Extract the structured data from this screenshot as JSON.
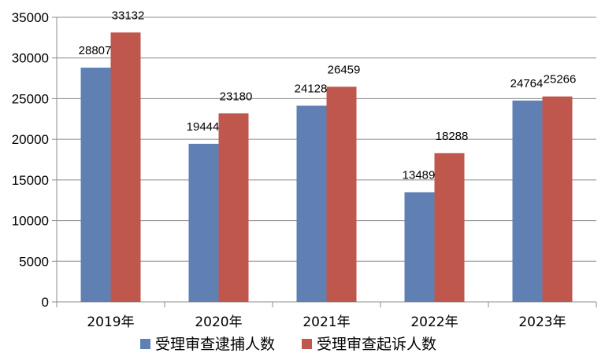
{
  "chart_data": {
    "type": "bar",
    "title": "",
    "xlabel": "",
    "ylabel": "",
    "categories": [
      "2019年",
      "2020年",
      "2021年",
      "2022年",
      "2023年"
    ],
    "series": [
      {
        "name": "受理审查逮捕人数",
        "color": "#6080b4",
        "values": [
          28807,
          19444,
          24128,
          13489,
          24764
        ]
      },
      {
        "name": "受理审查起诉人数",
        "color": "#c0574c",
        "values": [
          33132,
          23180,
          26459,
          18288,
          25266
        ]
      }
    ],
    "ylim": [
      0,
      35000
    ],
    "yticks": [
      0,
      5000,
      10000,
      15000,
      20000,
      25000,
      30000,
      35000
    ],
    "grid": true,
    "legend_position": "bottom"
  }
}
